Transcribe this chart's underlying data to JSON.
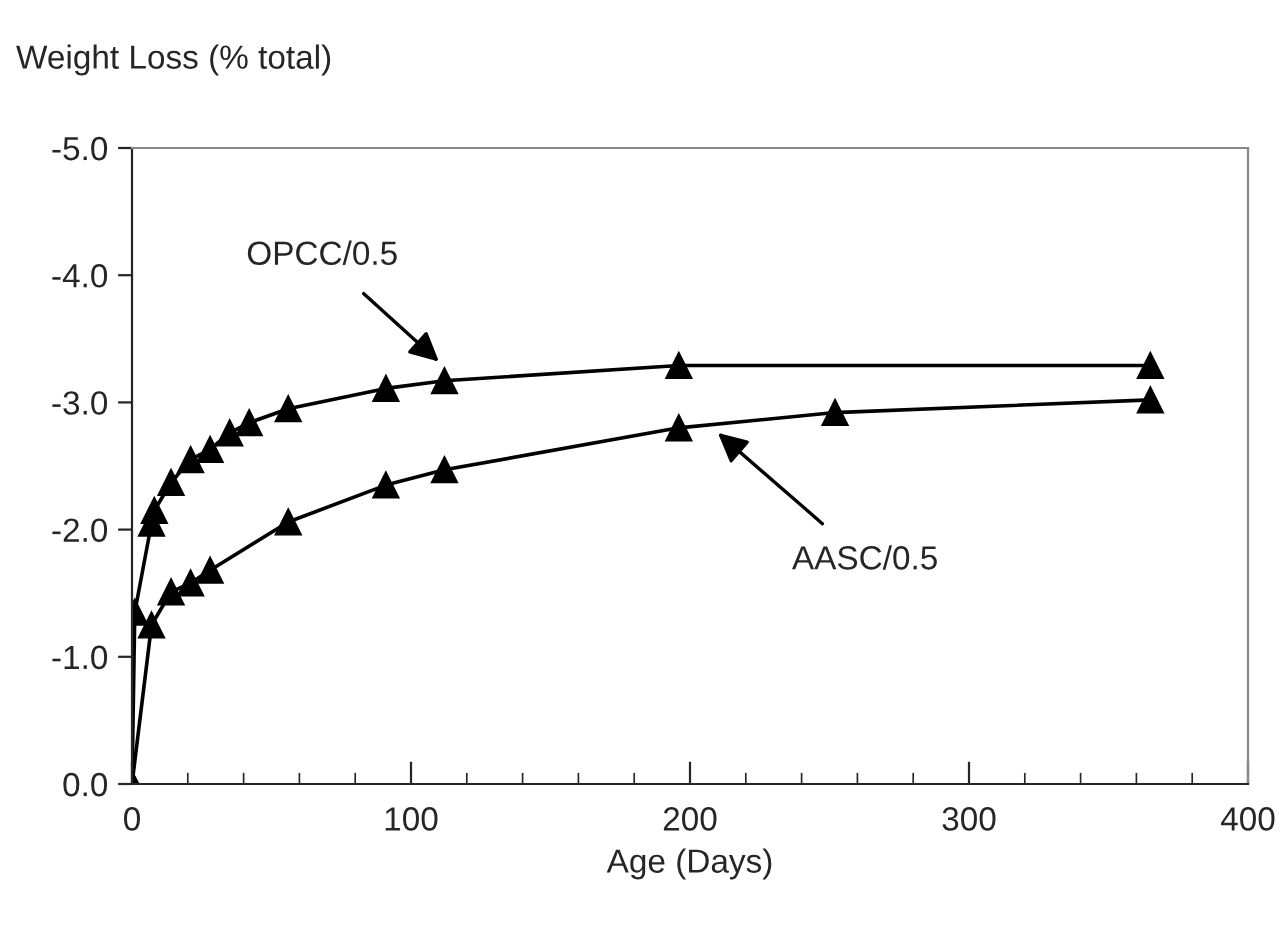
{
  "chart_data": {
    "type": "line",
    "ylabel": "Weight Loss (% total)",
    "xlabel": "Age (Days)",
    "series": [
      {
        "color": "#000000",
        "x": [
          0,
          1,
          7,
          8,
          14,
          21,
          28,
          35,
          42,
          56,
          91,
          112,
          196,
          365
        ],
        "values": [
          0,
          -1.35,
          -2.05,
          -2.15,
          -2.37,
          -2.55,
          -2.63,
          -2.76,
          -2.84,
          -2.95,
          -3.11,
          -3.17,
          -3.29,
          -3.29
        ]
      },
      {
        "color": "#000000",
        "x": [
          0,
          7,
          14,
          21,
          28,
          56,
          91,
          112,
          196,
          252,
          365
        ],
        "values": [
          0,
          -1.25,
          -1.51,
          -1.58,
          -1.68,
          -2.06,
          -2.35,
          -2.47,
          -2.8,
          -2.92,
          -3.02
        ]
      }
    ],
    "annotations": [
      {
        "text": "OPCC/0.5",
        "x": 110,
        "y": -3.32
      },
      {
        "text": "AASC/0.5",
        "x": 210,
        "y": -2.76
      }
    ],
    "xlim": [
      0,
      400
    ],
    "xticks": [
      0,
      100,
      200,
      300,
      400
    ],
    "ylim": [
      0,
      -5
    ],
    "yticks": [
      {
        "value": 0,
        "label": "0.0"
      },
      {
        "value": -1,
        "label": "-1.0"
      },
      {
        "value": -2,
        "label": "-2.0"
      },
      {
        "value": -3,
        "label": "-3.0"
      },
      {
        "value": -4,
        "label": "-4.0"
      },
      {
        "value": -5,
        "label": "-5.0"
      }
    ],
    "marker": "triangle",
    "line_style": "solid",
    "grid": false,
    "legend": false
  }
}
